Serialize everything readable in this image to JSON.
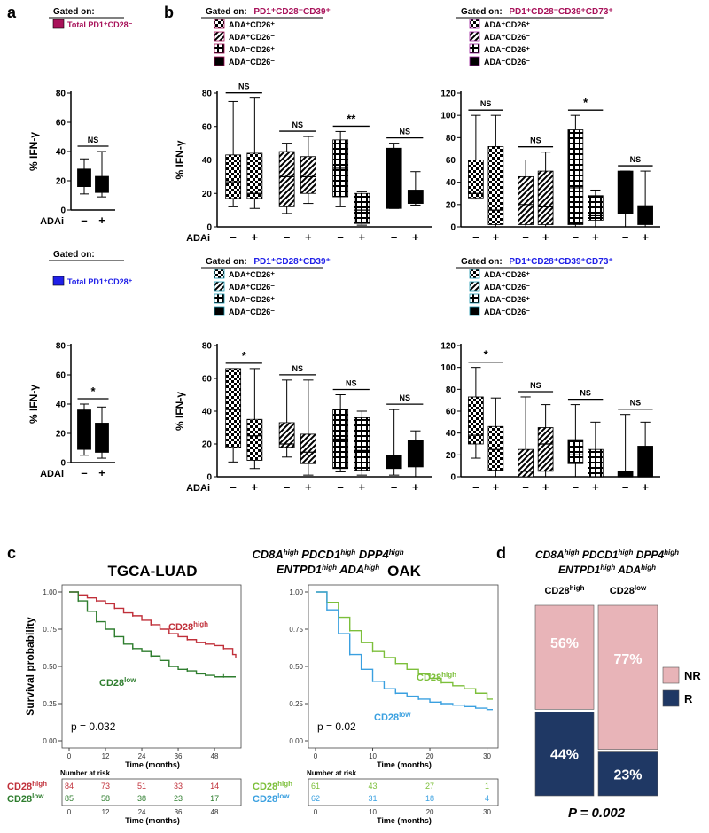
{
  "panel_labels": {
    "a": "a",
    "b": "b",
    "c": "c",
    "d": "d"
  },
  "colors": {
    "maroon": "#a8125a",
    "purple": "#a020a0",
    "blue": "#2020e8",
    "teal": "#1e9ab2",
    "red_curve": "#c0303a",
    "green_dark": "#2e7d2e",
    "green_light": "#7cbf3a",
    "sky": "#3aa0e0",
    "nr": "#e8b4b8",
    "r": "#1f3864"
  },
  "gated": {
    "a_top": {
      "prefix": "Gated on:",
      "label": "Total PD1⁺CD28⁻"
    },
    "a_bot": {
      "prefix": "Gated on:",
      "label": "Total PD1⁺CD28⁺"
    },
    "b1": {
      "prefix": "Gated on:",
      "label": "PD1⁺CD28⁻CD39⁺"
    },
    "b2": {
      "prefix": "Gated on:",
      "label": "PD1⁺CD28⁻CD39⁺CD73⁺"
    },
    "b3": {
      "prefix": "Gated on:",
      "label": "PD1⁺CD28⁺CD39⁺"
    },
    "b4": {
      "prefix": "Gated on:",
      "label": "PD1⁺CD28⁺CD39⁺CD73⁺"
    }
  },
  "legend_entries": [
    "ADA⁺CD26⁺",
    "ADA⁺CD26⁻",
    "ADA⁻CD26⁺",
    "ADA⁻CD26⁻"
  ],
  "axis": {
    "ylabel": "% IFN-γ",
    "adai": "ADAi",
    "minus": "–",
    "plus": "+"
  },
  "chart_data": [
    {
      "id": "a_top",
      "type": "box",
      "ylim": [
        0,
        80
      ],
      "ticks": [
        "0",
        "20",
        "40",
        "60",
        "80"
      ],
      "groups": [
        {
          "boxes": [
            {
              "min": 11,
              "q1": 16,
              "med": 22,
              "q3": 28,
              "max": 35
            },
            {
              "min": 9,
              "q1": 12,
              "med": 18,
              "q3": 23,
              "max": 40
            }
          ],
          "sig": "NS"
        }
      ]
    },
    {
      "id": "a_bot",
      "type": "box",
      "ylim": [
        0,
        80
      ],
      "ticks": [
        "0",
        "20",
        "40",
        "60",
        "80"
      ],
      "groups": [
        {
          "boxes": [
            {
              "min": 5,
              "q1": 9,
              "med": 20,
              "q3": 36,
              "max": 40
            },
            {
              "min": 3,
              "q1": 7,
              "med": 17,
              "q3": 27,
              "max": 38
            }
          ],
          "sig": "*"
        }
      ]
    },
    {
      "id": "b1",
      "type": "box",
      "ylim": [
        0,
        80
      ],
      "ticks": [
        "0",
        "20",
        "40",
        "60",
        "80"
      ],
      "groups": [
        {
          "boxes": [
            {
              "min": 12,
              "q1": 17,
              "med": 27,
              "q3": 43,
              "max": 75
            },
            {
              "min": 11,
              "q1": 17,
              "med": 20,
              "q3": 44,
              "max": 77
            }
          ],
          "sig": "NS"
        },
        {
          "boxes": [
            {
              "min": 8,
              "q1": 12,
              "med": 30,
              "q3": 45,
              "max": 50
            },
            {
              "min": 14,
              "q1": 20,
              "med": 30,
              "q3": 42,
              "max": 54
            }
          ],
          "sig": "NS"
        },
        {
          "boxes": [
            {
              "min": 12,
              "q1": 18,
              "med": 35,
              "q3": 52,
              "max": 57
            },
            {
              "min": 1,
              "q1": 2,
              "med": 10,
              "q3": 20,
              "max": 21
            }
          ],
          "sig": "**"
        },
        {
          "boxes": [
            {
              "min": 11,
              "q1": 11,
              "med": 20,
              "q3": 47,
              "max": 50
            },
            {
              "min": 13,
              "q1": 14,
              "med": 16,
              "q3": 22,
              "max": 33
            }
          ],
          "sig": "NS"
        }
      ]
    },
    {
      "id": "b2",
      "type": "box",
      "ylim": [
        0,
        120
      ],
      "ticks": [
        "0",
        "20",
        "40",
        "60",
        "80",
        "100",
        "120"
      ],
      "groups": [
        {
          "boxes": [
            {
              "min": 25,
              "q1": 26,
              "med": 30,
              "q3": 60,
              "max": 100
            },
            {
              "min": 0,
              "q1": 2,
              "med": 15,
              "q3": 72,
              "max": 100
            }
          ],
          "sig": "NS"
        },
        {
          "boxes": [
            {
              "min": 0,
              "q1": 2,
              "med": 20,
              "q3": 45,
              "max": 60
            },
            {
              "min": 0,
              "q1": 2,
              "med": 18,
              "q3": 50,
              "max": 67
            }
          ],
          "sig": "NS"
        },
        {
          "boxes": [
            {
              "min": 0,
              "q1": 2,
              "med": 35,
              "q3": 87,
              "max": 100
            },
            {
              "min": 0,
              "q1": 6,
              "med": 10,
              "q3": 28,
              "max": 33
            }
          ],
          "sig": "*"
        },
        {
          "boxes": [
            {
              "min": 0,
              "q1": 12,
              "med": 25,
              "q3": 50,
              "max": 50
            },
            {
              "min": 0,
              "q1": 2,
              "med": 12,
              "q3": 19,
              "max": 50
            }
          ],
          "sig": "NS"
        }
      ]
    },
    {
      "id": "b3",
      "type": "box",
      "ylim": [
        0,
        80
      ],
      "ticks": [
        "0",
        "20",
        "40",
        "60",
        "80"
      ],
      "groups": [
        {
          "boxes": [
            {
              "min": 9,
              "q1": 18,
              "med": 41,
              "q3": 66,
              "max": 66
            },
            {
              "min": 5,
              "q1": 10,
              "med": 25,
              "q3": 35,
              "max": 66
            }
          ],
          "sig": "*"
        },
        {
          "boxes": [
            {
              "min": 12,
              "q1": 18,
              "med": 20,
              "q3": 33,
              "max": 59
            },
            {
              "min": 1,
              "q1": 8,
              "med": 15,
              "q3": 26,
              "max": 59
            }
          ],
          "sig": "NS"
        },
        {
          "boxes": [
            {
              "min": 3,
              "q1": 5,
              "med": 23,
              "q3": 41,
              "max": 50
            },
            {
              "min": 1,
              "q1": 4,
              "med": 16,
              "q3": 36,
              "max": 40
            }
          ],
          "sig": "NS"
        },
        {
          "boxes": [
            {
              "min": 1,
              "q1": 5,
              "med": 9,
              "q3": 13,
              "max": 41
            },
            {
              "min": 0,
              "q1": 6,
              "med": 12,
              "q3": 22,
              "max": 28
            }
          ],
          "sig": "NS"
        }
      ]
    },
    {
      "id": "b4",
      "type": "box",
      "ylim": [
        0,
        120
      ],
      "ticks": [
        "0",
        "20",
        "40",
        "60",
        "80",
        "100",
        "120"
      ],
      "groups": [
        {
          "boxes": [
            {
              "min": 17,
              "q1": 30,
              "med": 38,
              "q3": 73,
              "max": 100
            },
            {
              "min": 0,
              "q1": 6,
              "med": 25,
              "q3": 46,
              "max": 72
            }
          ],
          "sig": "*"
        },
        {
          "boxes": [
            {
              "min": 0,
              "q1": 0,
              "med": 5,
              "q3": 25,
              "max": 73
            },
            {
              "min": 0,
              "q1": 5,
              "med": 30,
              "q3": 45,
              "max": 66
            }
          ],
          "sig": "NS"
        },
        {
          "boxes": [
            {
              "min": 0,
              "q1": 12,
              "med": 20,
              "q3": 34,
              "max": 66
            },
            {
              "min": 0,
              "q1": 0,
              "med": 0,
              "q3": 25,
              "max": 50
            }
          ],
          "sig": "NS"
        },
        {
          "boxes": [
            {
              "min": 0,
              "q1": 0,
              "med": 0,
              "q3": 5,
              "max": 57
            },
            {
              "min": 0,
              "q1": 0,
              "med": 0,
              "q3": 28,
              "max": 50
            }
          ],
          "sig": "NS"
        }
      ]
    },
    {
      "id": "km_tcga",
      "type": "line",
      "title": "TGCA-LUAD",
      "xlabel": "Time (months)",
      "ylabel": "Survival probability",
      "xlim": [
        0,
        55
      ],
      "xticks": [
        "0",
        "12",
        "24",
        "36",
        "48"
      ],
      "yticks": [
        "0.00",
        "0.25",
        "0.50",
        "0.75",
        "1.00"
      ],
      "pvalue": "p = 0.032",
      "series": [
        {
          "name": "CD28high",
          "x": [
            0,
            3,
            6,
            9,
            12,
            15,
            18,
            21,
            24,
            27,
            30,
            33,
            36,
            39,
            42,
            45,
            48,
            51,
            54,
            55
          ],
          "y": [
            1.0,
            0.98,
            0.96,
            0.94,
            0.92,
            0.89,
            0.86,
            0.84,
            0.81,
            0.78,
            0.75,
            0.72,
            0.7,
            0.68,
            0.66,
            0.65,
            0.64,
            0.62,
            0.58,
            0.56
          ]
        },
        {
          "name": "CD28low",
          "x": [
            0,
            3,
            6,
            9,
            12,
            15,
            18,
            21,
            24,
            27,
            30,
            33,
            36,
            39,
            42,
            45,
            48,
            51,
            55
          ],
          "y": [
            1.0,
            0.94,
            0.87,
            0.8,
            0.75,
            0.7,
            0.65,
            0.62,
            0.6,
            0.57,
            0.54,
            0.5,
            0.48,
            0.47,
            0.45,
            0.44,
            0.43,
            0.43,
            0.43
          ]
        }
      ]
    },
    {
      "id": "km_oak",
      "type": "line",
      "title": "OAK",
      "xlabel": "Time (months)",
      "xlim": [
        0,
        31
      ],
      "xticks": [
        "0",
        "10",
        "20",
        "30"
      ],
      "yticks": [
        "0.00",
        "0.25",
        "0.50",
        "0.75",
        "1.00"
      ],
      "pvalue": "p = 0.02",
      "series": [
        {
          "name": "CD28high",
          "x": [
            0,
            2,
            4,
            6,
            8,
            10,
            12,
            14,
            16,
            18,
            20,
            22,
            24,
            26,
            28,
            30,
            31
          ],
          "y": [
            1.0,
            0.93,
            0.83,
            0.74,
            0.66,
            0.6,
            0.56,
            0.52,
            0.48,
            0.45,
            0.42,
            0.39,
            0.37,
            0.35,
            0.32,
            0.28,
            0.28
          ]
        },
        {
          "name": "CD28low",
          "x": [
            0,
            2,
            4,
            6,
            8,
            10,
            12,
            14,
            16,
            18,
            20,
            22,
            24,
            26,
            28,
            30,
            31
          ],
          "y": [
            1.0,
            0.88,
            0.72,
            0.58,
            0.48,
            0.4,
            0.35,
            0.32,
            0.3,
            0.28,
            0.26,
            0.25,
            0.24,
            0.23,
            0.22,
            0.21,
            0.21
          ]
        }
      ]
    },
    {
      "id": "mosaic",
      "type": "bar",
      "categories": [
        "CD28high",
        "CD28low"
      ],
      "series": [
        {
          "name": "NR",
          "values": [
            56,
            77
          ]
        },
        {
          "name": "R",
          "values": [
            44,
            23
          ]
        }
      ],
      "labels": [
        "56%",
        "77%",
        "44%",
        "23%"
      ],
      "pvalue": "P = 0.002"
    }
  ],
  "km": {
    "genes_line1": [
      {
        "g": "CD8A",
        "s": "high"
      },
      {
        "g": "PDCD1",
        "s": "high"
      },
      {
        "g": "DPP4",
        "s": "high"
      }
    ],
    "genes_line2": [
      {
        "g": "ENTPD1",
        "s": "high"
      },
      {
        "g": "ADA",
        "s": "high"
      }
    ],
    "cd28": "CD28",
    "high": "high",
    "low": "low",
    "risk_title": "Number at risk",
    "tcga_risk": {
      "high": [
        "84",
        "73",
        "51",
        "33",
        "14"
      ],
      "low": [
        "85",
        "58",
        "38",
        "23",
        "17"
      ]
    },
    "oak_risk": {
      "high": [
        "61",
        "43",
        "27",
        "1"
      ],
      "low": [
        "62",
        "31",
        "18",
        "4"
      ]
    }
  },
  "mosaic_legend": {
    "nr": "NR",
    "r": "R"
  }
}
